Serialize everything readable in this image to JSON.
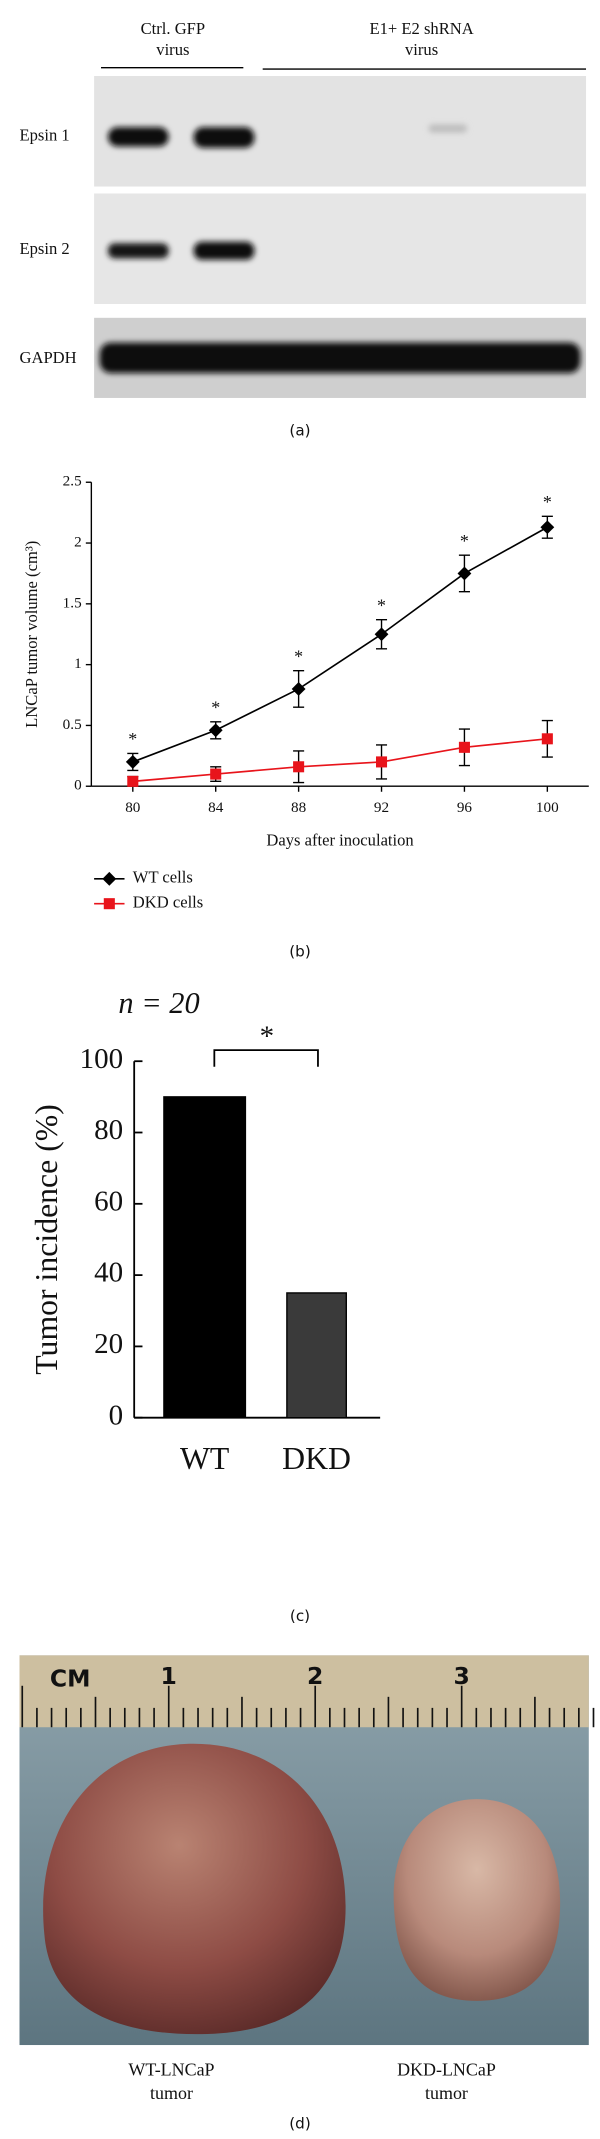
{
  "blot": {
    "groups": [
      [
        "Ctrl. GFP",
        "virus"
      ],
      [
        "E1+ E2 shRNA",
        "virus"
      ]
    ],
    "rows": [
      "Epsin 1",
      "Epsin 2",
      "GAPDH"
    ],
    "caption": "(a)"
  },
  "chart_data": [
    {
      "type": "line",
      "x": [
        80,
        84,
        88,
        92,
        96,
        100
      ],
      "xlim": [
        78,
        102
      ],
      "xticks": [
        80,
        84,
        88,
        92,
        96,
        100
      ],
      "ylim": [
        0,
        2.5
      ],
      "yticks": [
        0,
        0.5,
        1,
        1.5,
        2,
        2.5
      ],
      "xlabel": "Days after inoculation",
      "ylabel": "LNCaP tumor volume (cm³)",
      "legend": "bottom-left",
      "series": [
        {
          "name": "WT cells",
          "color": "#000000",
          "marker": "diamond",
          "values": [
            0.2,
            0.46,
            0.8,
            1.25,
            1.75,
            2.13
          ],
          "errors": [
            0.07,
            0.07,
            0.15,
            0.12,
            0.15,
            0.09
          ]
        },
        {
          "name": "DKD cells",
          "color": "#e8141b",
          "marker": "square",
          "values": [
            0.04,
            0.1,
            0.16,
            0.2,
            0.32,
            0.39
          ],
          "errors": [
            0.04,
            0.06,
            0.13,
            0.14,
            0.15,
            0.15
          ]
        }
      ],
      "significance": [
        "*",
        "*",
        "*",
        "*",
        "*",
        "*"
      ],
      "caption": "(b)"
    },
    {
      "type": "bar",
      "categories": [
        "WT",
        "DKD"
      ],
      "values": [
        90,
        35
      ],
      "colors": [
        "#000000",
        "#3a3a3a"
      ],
      "ylim": [
        0,
        100
      ],
      "yticks": [
        0,
        20,
        40,
        60,
        80,
        100
      ],
      "ylabel": "Tumor incidence (%)",
      "n_label": "n = 20",
      "significance": "*",
      "caption": "(c)"
    }
  ],
  "photo": {
    "ruler_labels": [
      "CM",
      "1",
      "2",
      "3"
    ],
    "labels": [
      [
        "WT-LNCaP",
        "tumor"
      ],
      [
        "DKD-LNCaP",
        "tumor"
      ]
    ],
    "caption": "(d)"
  }
}
